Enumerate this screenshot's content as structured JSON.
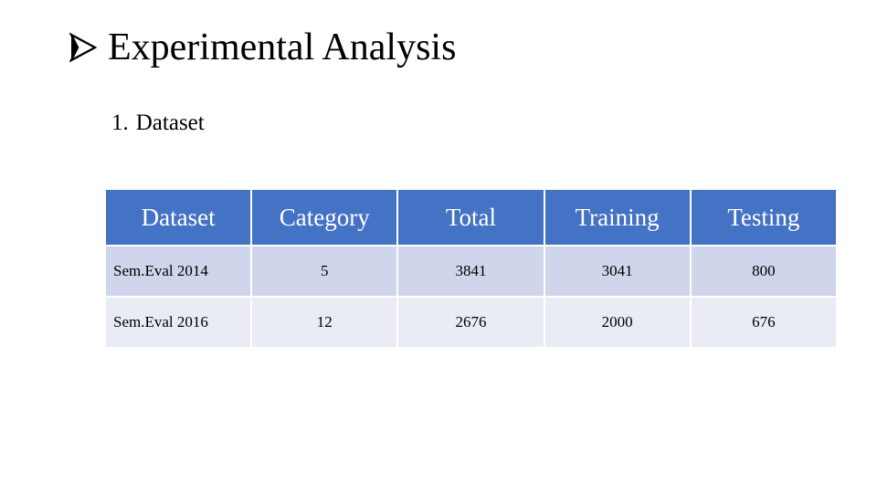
{
  "header": {
    "title": "Experimental Analysis"
  },
  "section": {
    "number": "1.",
    "title": "Dataset"
  },
  "table": {
    "columns": [
      "Dataset",
      "Category",
      "Total",
      "Training",
      "Testing"
    ],
    "rows": [
      [
        "Sem.Eval 2014",
        5,
        3841,
        3041,
        800
      ],
      [
        "Sem.Eval 2016",
        12,
        2676,
        2000,
        676
      ]
    ]
  }
}
